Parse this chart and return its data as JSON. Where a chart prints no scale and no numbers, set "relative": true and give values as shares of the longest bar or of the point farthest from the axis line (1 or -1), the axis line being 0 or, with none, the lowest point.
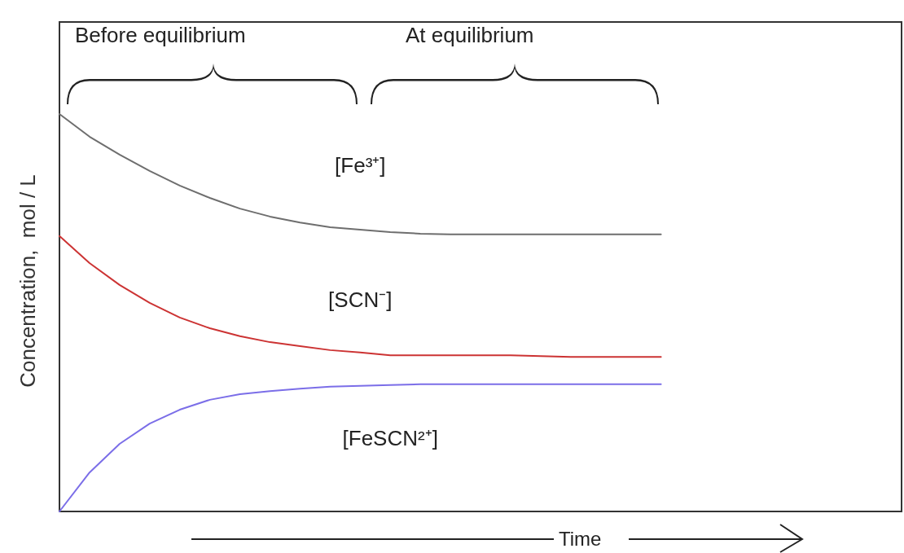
{
  "chart_data": {
    "type": "line",
    "relative": true,
    "xlabel": "Time",
    "ylabel": "Concentration,  mol / L",
    "annotations": [
      "Before equilibrium",
      "At equilibrium"
    ],
    "categories": [
      null,
      null,
      null,
      null,
      null,
      null,
      null,
      null,
      null,
      null,
      null,
      null,
      null,
      null,
      null,
      null,
      null,
      null,
      null,
      null,
      null,
      null,
      null,
      null,
      null,
      null,
      null,
      null,
      null
    ],
    "series": [
      {
        "name": "[Fe³⁺]",
        "color": "#6e6e6e",
        "values": [
          1.0,
          0.943,
          0.898,
          0.857,
          0.82,
          0.789,
          0.762,
          0.742,
          0.727,
          0.715,
          0.709,
          0.703,
          0.699,
          0.697,
          0.697,
          0.697,
          0.697,
          0.697,
          0.697,
          0.697,
          0.697,
          null,
          null,
          null,
          null,
          null,
          null,
          null,
          null
        ]
      },
      {
        "name": "[SCN⁻]",
        "color": "#cc3333",
        "values": [
          0.693,
          0.625,
          0.57,
          0.525,
          0.488,
          0.461,
          0.441,
          0.426,
          0.416,
          0.406,
          0.4,
          0.393,
          0.393,
          0.393,
          0.393,
          0.393,
          0.391,
          0.389,
          0.389,
          0.389,
          0.389,
          null,
          null,
          null,
          null,
          null,
          null,
          null,
          null
        ]
      },
      {
        "name": "[FeSCN²⁺]",
        "color": "#7b6ee8",
        "values": [
          0,
          0.098,
          0.17,
          0.221,
          0.256,
          0.281,
          0.295,
          0.303,
          0.309,
          0.314,
          0.316,
          0.318,
          0.32,
          0.32,
          0.32,
          0.32,
          0.32,
          0.32,
          0.32,
          0.32,
          0.32,
          null,
          null,
          null,
          null,
          null,
          null,
          null,
          null
        ]
      }
    ],
    "grid": false,
    "marker": "none",
    "line_style": "solid"
  }
}
